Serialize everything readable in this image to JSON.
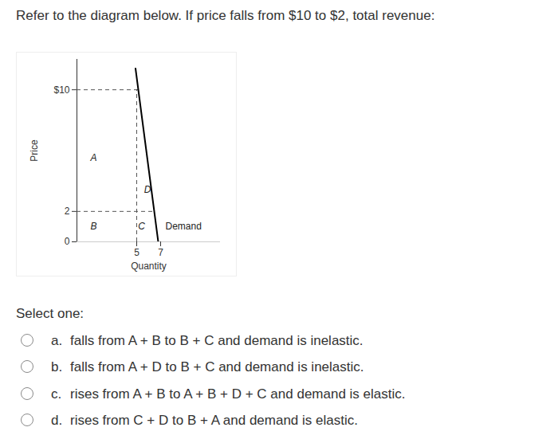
{
  "question": "Refer to the diagram below. If price falls from $10 to $2, total revenue:",
  "chart_data": {
    "type": "line",
    "x_label": "Quantity",
    "y_label": "Price",
    "series": [
      {
        "name": "Demand",
        "x": [
          4.9,
          6.8
        ],
        "values": [
          11.4,
          0
        ],
        "color": "#000000",
        "label_at": [
          7.4,
          1.0
        ]
      }
    ],
    "xlim": [
      0,
      12
    ],
    "ylim": [
      0,
      12
    ],
    "xticks": [
      5,
      7
    ],
    "yticks": [
      0,
      2,
      {
        "value": 10,
        "label": "$10"
      }
    ],
    "reference_lines": {
      "y": [
        10,
        2
      ],
      "x": [
        5
      ]
    },
    "annotations": [
      {
        "text": "A",
        "x": 1.4,
        "y": 5.5
      },
      {
        "text": "B",
        "x": 1.4,
        "y": 1.0
      },
      {
        "text": "C",
        "x": 5.4,
        "y": 1.0
      },
      {
        "text": "D",
        "x": 5.9,
        "y": 3.4
      }
    ]
  },
  "prompt": "Select one:",
  "options": [
    {
      "letter": "a.",
      "text": "falls from A + B to B + C and demand is inelastic."
    },
    {
      "letter": "b.",
      "text": "falls from A + D to B + C and demand is inelastic."
    },
    {
      "letter": "c.",
      "text": "rises from A + B to A + B + D + C and demand is elastic."
    },
    {
      "letter": "d.",
      "text": "rises from C + D to B + A and demand is elastic."
    }
  ]
}
